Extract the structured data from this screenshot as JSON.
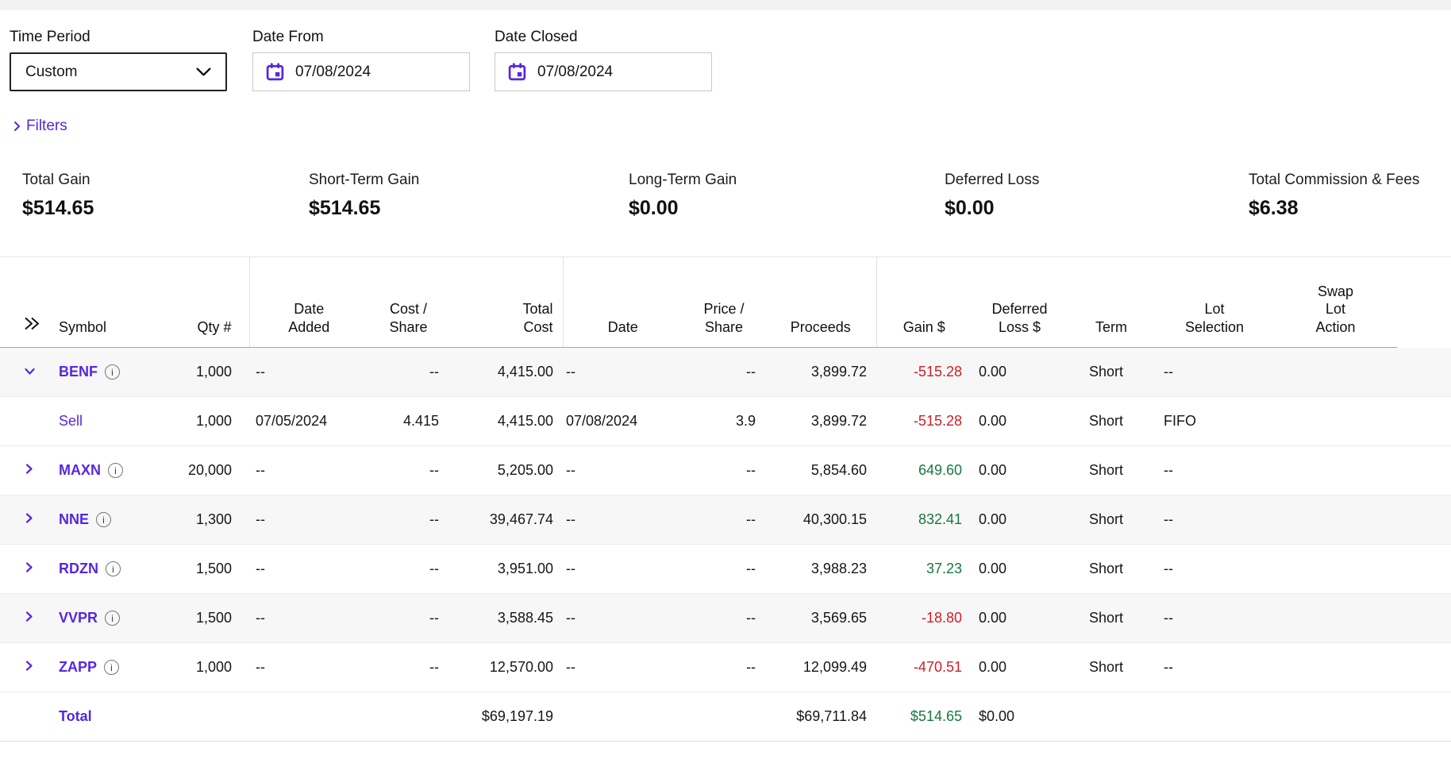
{
  "colors": {
    "accent": "#5627e0",
    "negative": "#cf1f25",
    "positive": "#15793e"
  },
  "filter_bar": {
    "time_period_label": "Time Period",
    "time_period_value": "Custom",
    "date_from_label": "Date From",
    "date_from_value": "07/08/2024",
    "date_closed_label": "Date Closed",
    "date_closed_value": "07/08/2024",
    "filters_link_label": "Filters"
  },
  "summary": [
    {
      "label": "Total Gain",
      "value": "$514.65"
    },
    {
      "label": "Short-Term Gain",
      "value": "$514.65"
    },
    {
      "label": "Long-Term Gain",
      "value": "$0.00"
    },
    {
      "label": "Deferred Loss",
      "value": "$0.00"
    },
    {
      "label": "Total Commission & Fees",
      "value": "$6.38"
    }
  ],
  "table": {
    "headers": [
      {
        "id": "expand",
        "lines": [],
        "cls": "h-expand al",
        "icon": "expand-all-icon"
      },
      {
        "id": "symbol",
        "lines": [
          "Symbol"
        ],
        "cls": "h-symbol al"
      },
      {
        "id": "qty",
        "lines": [
          "Qty #"
        ],
        "cls": "h-qty"
      },
      {
        "id": "date_added",
        "lines": [
          "Date",
          "Added"
        ],
        "cls": "ac",
        "group_start": true
      },
      {
        "id": "cost_share",
        "lines": [
          "Cost /",
          "Share"
        ],
        "cls": "ac"
      },
      {
        "id": "total_cost",
        "lines": [
          "Total",
          "Cost"
        ],
        "cls": "h-total_cost"
      },
      {
        "id": "date",
        "lines": [
          "Date"
        ],
        "cls": "ac",
        "group_start": true
      },
      {
        "id": "price_share",
        "lines": [
          "Price /",
          "Share"
        ],
        "cls": "ac"
      },
      {
        "id": "proceeds",
        "lines": [
          "Proceeds"
        ],
        "cls": "ac"
      },
      {
        "id": "gain",
        "lines": [
          "Gain $"
        ],
        "cls": "ac",
        "group_start": true
      },
      {
        "id": "deferred",
        "lines": [
          "Deferred",
          "Loss $"
        ],
        "cls": "ac"
      },
      {
        "id": "term",
        "lines": [
          "Term"
        ],
        "cls": "ac"
      },
      {
        "id": "lot",
        "lines": [
          "Lot",
          "Selection"
        ],
        "cls": "ac"
      },
      {
        "id": "swap",
        "lines": [
          "Swap",
          "Lot",
          "Action"
        ],
        "cls": "ac"
      }
    ],
    "rows": [
      {
        "kind": "parent",
        "expanded": true,
        "info": true,
        "striped": true,
        "symbol": "BENF",
        "qty": "1,000",
        "date_added": "--",
        "cost_share": "--",
        "total_cost": "4,415.00",
        "date": "--",
        "price_share": "--",
        "proceeds": "3,899.72",
        "gain": "-515.28",
        "gain_sign": "negative",
        "deferred": "0.00",
        "term": "Short",
        "lot": "--",
        "swap": ""
      },
      {
        "kind": "sub",
        "expanded": false,
        "info": false,
        "striped": false,
        "symbol": "Sell",
        "qty": "1,000",
        "date_added": "07/05/2024",
        "cost_share": "4.415",
        "total_cost": "4,415.00",
        "date": "07/08/2024",
        "price_share": "3.9",
        "proceeds": "3,899.72",
        "gain": "-515.28",
        "gain_sign": "negative",
        "deferred": "0.00",
        "term": "Short",
        "lot": "FIFO",
        "swap": ""
      },
      {
        "kind": "parent",
        "expanded": false,
        "info": true,
        "striped": false,
        "symbol": "MAXN",
        "qty": "20,000",
        "date_added": "--",
        "cost_share": "--",
        "total_cost": "5,205.00",
        "date": "--",
        "price_share": "--",
        "proceeds": "5,854.60",
        "gain": "649.60",
        "gain_sign": "positive",
        "deferred": "0.00",
        "term": "Short",
        "lot": "--",
        "swap": ""
      },
      {
        "kind": "parent",
        "expanded": false,
        "info": true,
        "striped": true,
        "symbol": "NNE",
        "qty": "1,300",
        "date_added": "--",
        "cost_share": "--",
        "total_cost": "39,467.74",
        "date": "--",
        "price_share": "--",
        "proceeds": "40,300.15",
        "gain": "832.41",
        "gain_sign": "positive",
        "deferred": "0.00",
        "term": "Short",
        "lot": "--",
        "swap": ""
      },
      {
        "kind": "parent",
        "expanded": false,
        "info": true,
        "striped": false,
        "symbol": "RDZN",
        "qty": "1,500",
        "date_added": "--",
        "cost_share": "--",
        "total_cost": "3,951.00",
        "date": "--",
        "price_share": "--",
        "proceeds": "3,988.23",
        "gain": "37.23",
        "gain_sign": "positive",
        "deferred": "0.00",
        "term": "Short",
        "lot": "--",
        "swap": ""
      },
      {
        "kind": "parent",
        "expanded": false,
        "info": true,
        "striped": true,
        "symbol": "VVPR",
        "qty": "1,500",
        "date_added": "--",
        "cost_share": "--",
        "total_cost": "3,588.45",
        "date": "--",
        "price_share": "--",
        "proceeds": "3,569.65",
        "gain": "-18.80",
        "gain_sign": "negative",
        "deferred": "0.00",
        "term": "Short",
        "lot": "--",
        "swap": ""
      },
      {
        "kind": "parent",
        "expanded": false,
        "info": true,
        "striped": false,
        "symbol": "ZAPP",
        "qty": "1,000",
        "date_added": "--",
        "cost_share": "--",
        "total_cost": "12,570.00",
        "date": "--",
        "price_share": "--",
        "proceeds": "12,099.49",
        "gain": "-470.51",
        "gain_sign": "negative",
        "deferred": "0.00",
        "term": "Short",
        "lot": "--",
        "swap": ""
      }
    ],
    "total_row": {
      "label": "Total",
      "total_cost": "$69,197.19",
      "proceeds": "$69,711.84",
      "gain": "$514.65",
      "gain_sign": "positive",
      "deferred": "$0.00"
    }
  }
}
